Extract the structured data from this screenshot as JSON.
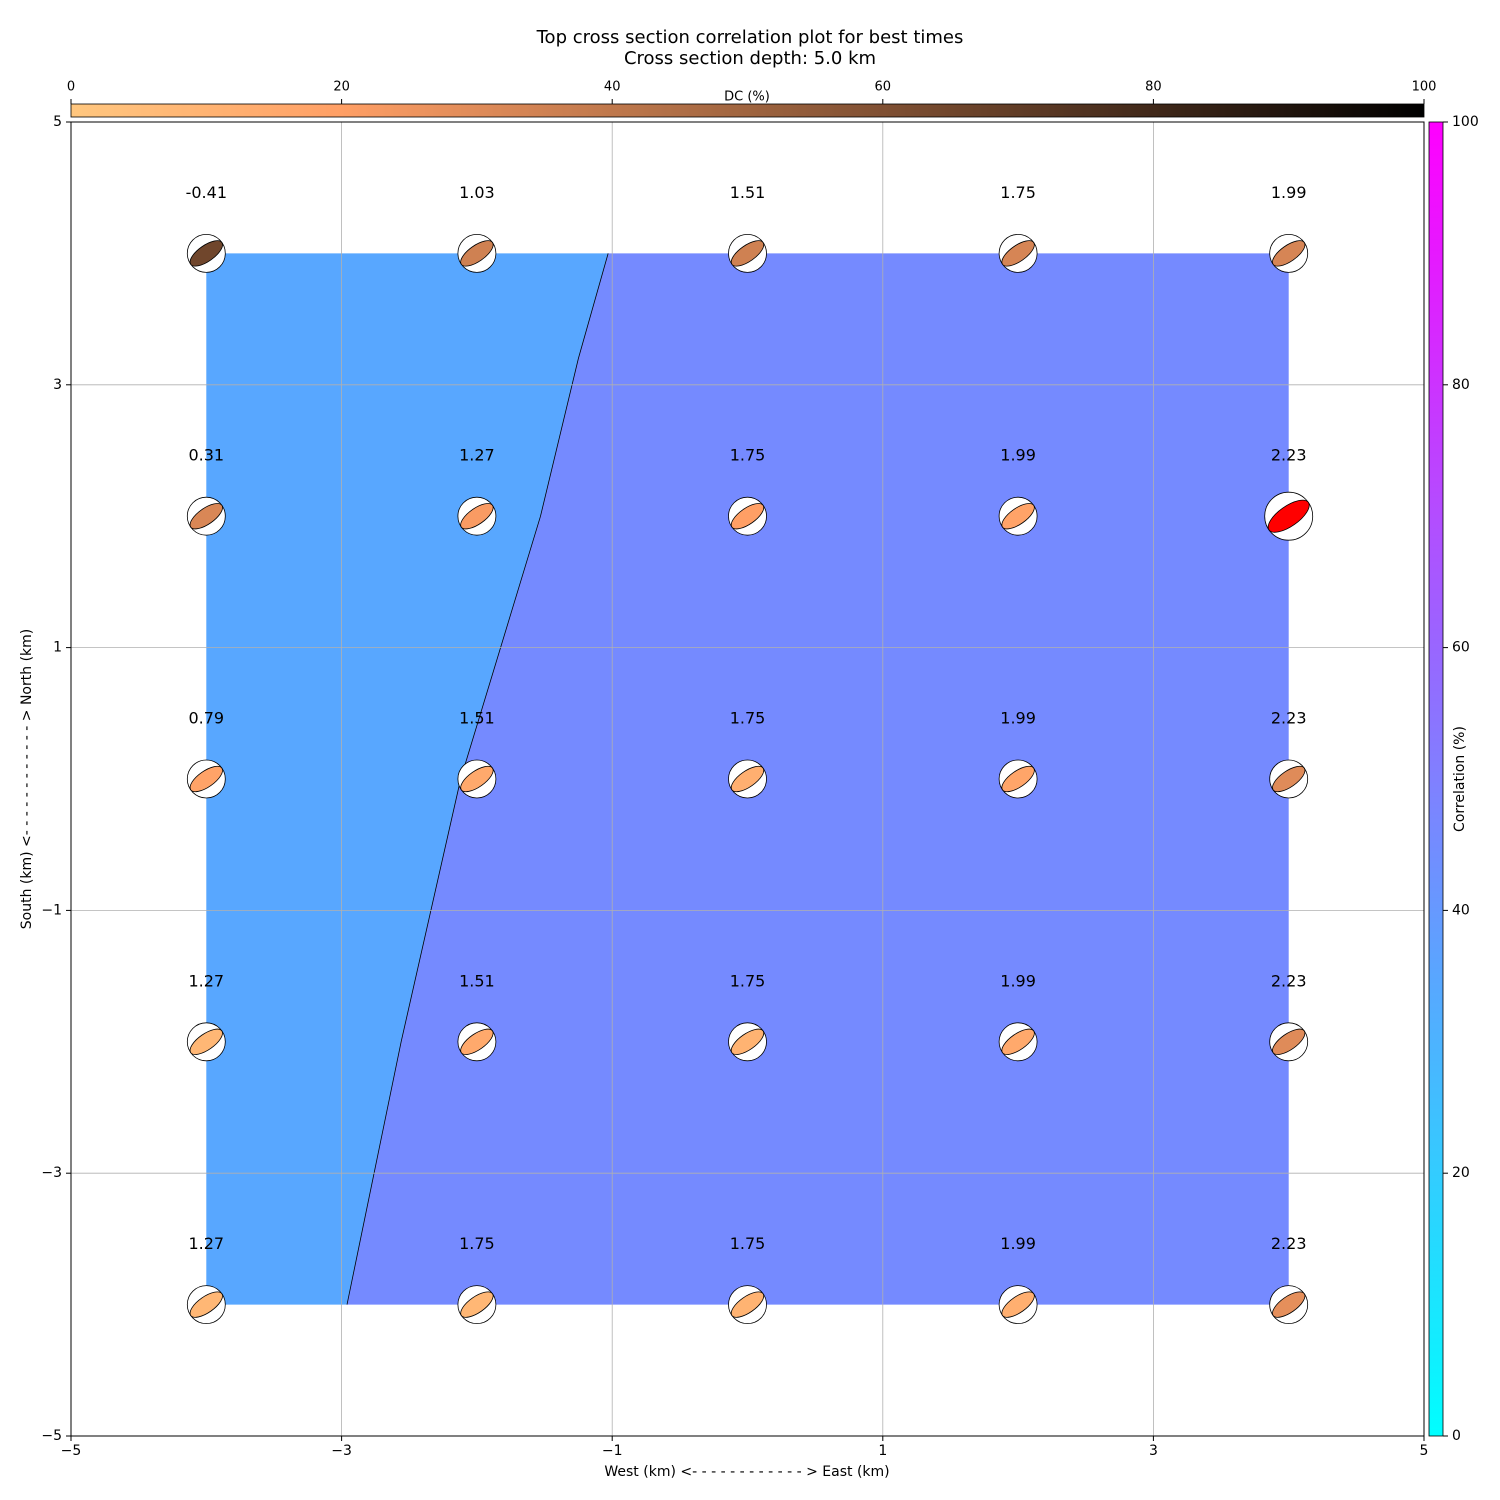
{
  "chart_data": {
    "type": "beachball-grid",
    "title": "Top cross section correlation plot for best times",
    "subtitle": "Cross section depth: 5.0 km",
    "x_label": "West (km) <- - - - - - - - - - - - > East (km)",
    "y_label": "South (km) <- - - - - - - - - - - - > North (km)",
    "xlim": [
      -5,
      5
    ],
    "ylim": [
      -5,
      5
    ],
    "xticks": [
      {
        "value": -5,
        "label": "−5"
      },
      {
        "value": -3,
        "label": "−3"
      },
      {
        "value": -1,
        "label": "−1"
      },
      1,
      3,
      5
    ],
    "yticks": [
      {
        "value": -5,
        "label": "−5"
      },
      {
        "value": -3,
        "label": "−3"
      },
      {
        "value": -1,
        "label": "−1"
      },
      1,
      3,
      5
    ],
    "grid": true,
    "x": [
      -4,
      -2,
      0,
      2,
      4,
      -4,
      -2,
      0,
      2,
      4,
      -4,
      -2,
      0,
      2,
      4,
      -4,
      -2,
      0,
      2,
      4,
      -4,
      -2,
      0,
      2,
      4
    ],
    "y": [
      4,
      4,
      4,
      4,
      4,
      2,
      2,
      2,
      2,
      2,
      0,
      0,
      0,
      0,
      0,
      -2,
      -2,
      -2,
      -2,
      -2,
      -4,
      -4,
      -4,
      -4,
      -4
    ],
    "values": [
      -0.41,
      1.03,
      1.51,
      1.75,
      1.99,
      0.31,
      1.27,
      1.75,
      1.99,
      2.23,
      0.79,
      1.51,
      1.75,
      1.99,
      2.23,
      1.27,
      1.51,
      1.75,
      1.99,
      2.23,
      1.27,
      1.75,
      1.75,
      1.99,
      2.23
    ],
    "dc": [
      65,
      35,
      35,
      33,
      33,
      32,
      22,
      20,
      18,
      30,
      18,
      15,
      12,
      17,
      30,
      8,
      15,
      10,
      15,
      30,
      8,
      8,
      10,
      12,
      28
    ],
    "best": [
      false,
      false,
      false,
      false,
      false,
      false,
      false,
      false,
      false,
      true,
      false,
      false,
      false,
      false,
      false,
      false,
      false,
      false,
      false,
      false,
      false,
      false,
      false,
      false,
      false
    ],
    "best_color": "#ff0000",
    "dc_colorbar": {
      "label": "DC (%)",
      "lim": [
        0,
        100
      ],
      "ticks": [
        0,
        20,
        40,
        60,
        80,
        100
      ],
      "colormap": "copper_r"
    },
    "correlation_colorbar": {
      "label": "Correlation (%)",
      "lim": [
        0,
        100
      ],
      "ticks": [
        0,
        20,
        40,
        60,
        80,
        100
      ],
      "colormap": "cool"
    },
    "regions": [
      {
        "correlation": 34.5
      },
      {
        "correlation": 46
      }
    ],
    "boundary": {
      "x": [
        -2.96,
        -2.56,
        -2.12,
        -1.53,
        -1.25,
        -1.03
      ],
      "y": [
        -4,
        -2,
        0,
        2,
        3.2,
        4
      ]
    }
  }
}
